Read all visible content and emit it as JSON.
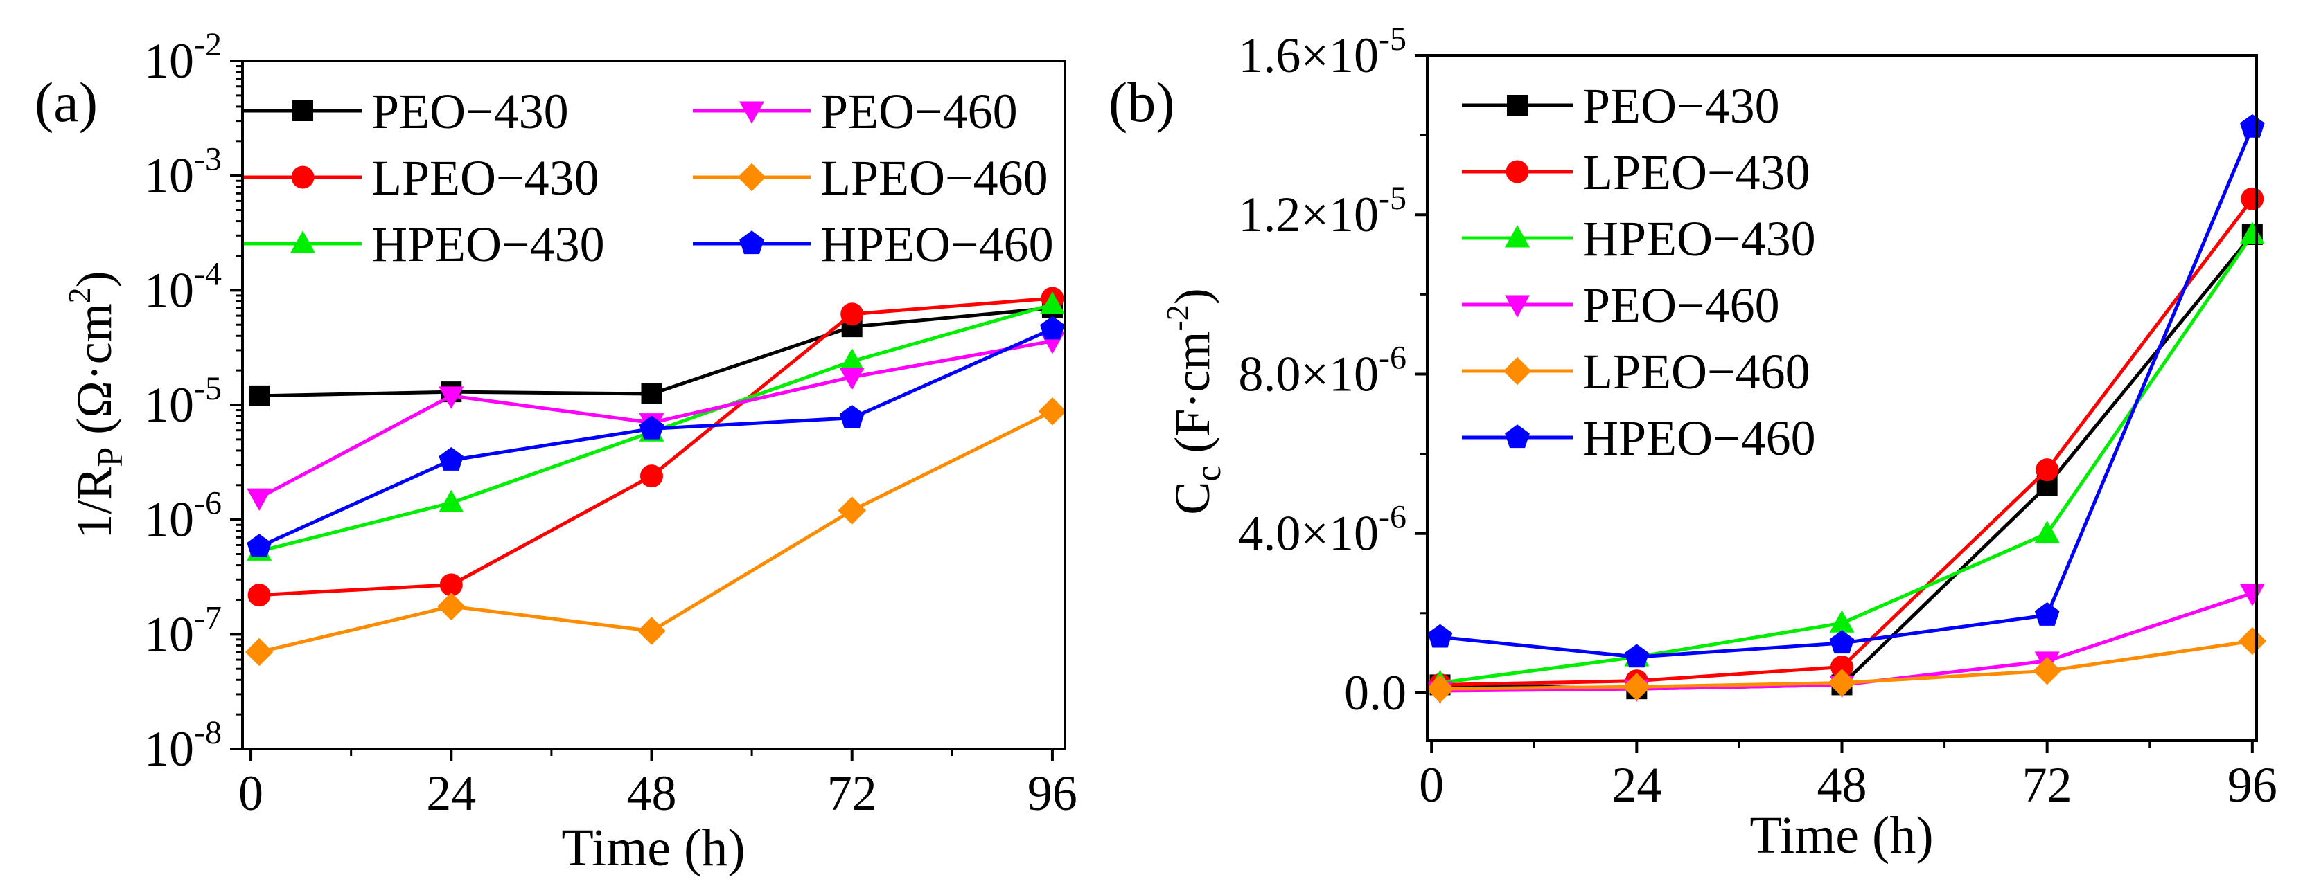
{
  "figure": {
    "panels": [
      {
        "panel_label": "(a)",
        "ylabel_main": "1/R",
        "ylabel_sub": "P",
        "ylabel_unit_pre": " (Ω·cm",
        "ylabel_unit_sup": "2",
        "ylabel_unit_post": ")",
        "xlabel": "Time (h)",
        "ytick_base": "10",
        "ytick_exponents": [
          "-8",
          "-7",
          "-6",
          "-5",
          "-4",
          "-3",
          "-2"
        ]
      },
      {
        "panel_label": "(b)",
        "ylabel_main": "C",
        "ylabel_sub": "c",
        "ylabel_unit_pre": " (F·cm",
        "ylabel_unit_sup": "-2",
        "ylabel_unit_post": ")",
        "xlabel": "Time (h)",
        "ytick_labels": [
          "0.0",
          "4.0×10",
          "8.0×10",
          "1.2×10",
          "1.6×10"
        ],
        "ytick_exponents": [
          "",
          "-6",
          "-6",
          "-5",
          "-5"
        ]
      }
    ]
  },
  "chart_data": [
    {
      "type": "line",
      "scale": "log",
      "panel": "(a)",
      "xlabel": "Time (h)",
      "ylabel": "1/R_P (Ω·cm^2)",
      "x": [
        1,
        24,
        48,
        72,
        96
      ],
      "xticks": [
        0,
        24,
        48,
        72,
        96
      ],
      "xlim": [
        -1,
        97.5
      ],
      "ylim": [
        1e-08,
        0.01
      ],
      "legend": "top, two columns",
      "series": [
        {
          "name": "PEO−430",
          "color": "#000000",
          "marker": "square",
          "values": [
            1.2e-05,
            1.3e-05,
            1.25e-05,
            4.8e-05,
            7e-05
          ]
        },
        {
          "name": "LPEO−430",
          "color": "#ff0000",
          "marker": "circle",
          "values": [
            2.2e-07,
            2.7e-07,
            2.4e-06,
            6.2e-05,
            8.5e-05
          ]
        },
        {
          "name": "HPEO−430",
          "color": "#00ee00",
          "marker": "triangle-up",
          "values": [
            5.3e-07,
            1.4e-06,
            5.8e-06,
            2.4e-05,
            7.5e-05
          ]
        },
        {
          "name": "PEO−460",
          "color": "#ff00ff",
          "marker": "triangle-down",
          "values": [
            1.55e-06,
            1.2e-05,
            7e-06,
            1.75e-05,
            3.6e-05
          ]
        },
        {
          "name": "LPEO−460",
          "color": "#ff8c00",
          "marker": "diamond",
          "values": [
            7e-08,
            1.75e-07,
            1.07e-07,
            1.2e-06,
            8.8e-06
          ]
        },
        {
          "name": "HPEO−460",
          "color": "#0000ff",
          "marker": "pentagon",
          "values": [
            5.8e-07,
            3.3e-06,
            6.2e-06,
            7.7e-06,
            4.6e-05
          ]
        }
      ]
    },
    {
      "type": "line",
      "scale": "linear",
      "panel": "(b)",
      "xlabel": "Time (h)",
      "ylabel": "C_c (F·cm^-2)",
      "x": [
        1,
        24,
        48,
        72,
        96
      ],
      "xticks": [
        0,
        24,
        48,
        72,
        96
      ],
      "xlim": [
        -0.5,
        96.5
      ],
      "ylim": [
        -1.2e-06,
        1.6e-05
      ],
      "legend": "top-left",
      "series": [
        {
          "name": "PEO−430",
          "color": "#000000",
          "marker": "square",
          "values": [
            2e-07,
            1e-07,
            2e-07,
            5.2e-06,
            1.15e-05
          ]
        },
        {
          "name": "LPEO−430",
          "color": "#ff0000",
          "marker": "circle",
          "values": [
            2e-07,
            3e-07,
            6.5e-07,
            5.6e-06,
            1.24e-05
          ]
        },
        {
          "name": "HPEO−430",
          "color": "#00ee00",
          "marker": "triangle-up",
          "values": [
            2.5e-07,
            9e-07,
            1.75e-06,
            4e-06,
            1.15e-05
          ]
        },
        {
          "name": "PEO−460",
          "color": "#ff00ff",
          "marker": "triangle-down",
          "values": [
            5e-08,
            1e-07,
            2e-07,
            8e-07,
            2.5e-06
          ]
        },
        {
          "name": "LPEO−460",
          "color": "#ff8c00",
          "marker": "diamond",
          "values": [
            1e-07,
            1.5e-07,
            2.5e-07,
            5.5e-07,
            1.3e-06
          ]
        },
        {
          "name": "HPEO−460",
          "color": "#0000ff",
          "marker": "pentagon",
          "values": [
            1.4e-06,
            9e-07,
            1.25e-06,
            1.95e-06,
            1.42e-05
          ]
        }
      ]
    }
  ]
}
